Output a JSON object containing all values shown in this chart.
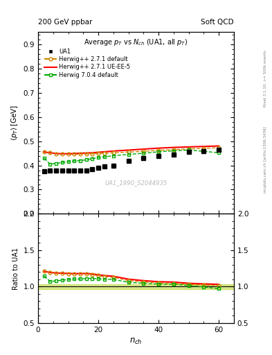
{
  "title_top_left": "200 GeV ppbar",
  "title_top_right": "Soft QCD",
  "main_title": "Average p_{T} vs N_{ch} (UA1, all p_{T})",
  "ylabel_main": "<p_T> [GeV]",
  "ylabel_ratio": "Ratio to UA1",
  "xlabel": "n_{ch}",
  "right_label_top": "Rivet 3.1.10, >= 500k events",
  "right_label_bottom": "mcplots.cern.ch [arXiv:1306.3436]",
  "watermark": "UA1_1990_S2044935",
  "ylim_main": [
    0.2,
    0.95
  ],
  "ylim_ratio": [
    0.5,
    2.0
  ],
  "xlim": [
    0,
    65
  ],
  "yticks_main": [
    0.2,
    0.3,
    0.4,
    0.5,
    0.6,
    0.7,
    0.8,
    0.9
  ],
  "yticks_ratio": [
    0.5,
    1.0,
    1.5,
    2.0
  ],
  "xticks": [
    0,
    20,
    40,
    60
  ],
  "ua1_x": [
    2,
    4,
    6,
    8,
    10,
    12,
    14,
    16,
    18,
    20,
    22,
    25,
    30,
    35,
    40,
    45,
    50,
    55,
    60
  ],
  "ua1_y": [
    0.375,
    0.378,
    0.378,
    0.378,
    0.378,
    0.378,
    0.38,
    0.38,
    0.385,
    0.39,
    0.395,
    0.4,
    0.42,
    0.43,
    0.44,
    0.445,
    0.455,
    0.46,
    0.465
  ],
  "hwpp271_default_x": [
    2,
    4,
    6,
    8,
    10,
    12,
    14,
    16,
    18,
    20,
    22,
    25,
    30,
    35,
    40,
    45,
    50,
    55,
    60
  ],
  "hwpp271_default_y": [
    0.455,
    0.452,
    0.448,
    0.447,
    0.446,
    0.446,
    0.447,
    0.447,
    0.448,
    0.449,
    0.45,
    0.452,
    0.455,
    0.458,
    0.462,
    0.465,
    0.468,
    0.47,
    0.473
  ],
  "hwpp271_ueee5_x": [
    2,
    4,
    6,
    8,
    10,
    12,
    14,
    16,
    18,
    20,
    22,
    25,
    30,
    35,
    40,
    45,
    50,
    55,
    60
  ],
  "hwpp271_ueee5_y": [
    0.455,
    0.452,
    0.449,
    0.448,
    0.448,
    0.449,
    0.45,
    0.451,
    0.452,
    0.454,
    0.456,
    0.459,
    0.463,
    0.467,
    0.471,
    0.474,
    0.476,
    0.478,
    0.48
  ],
  "hw704_default_x": [
    2,
    4,
    6,
    8,
    10,
    12,
    14,
    16,
    18,
    20,
    22,
    25,
    30,
    35,
    40,
    45,
    50,
    55,
    60
  ],
  "hw704_default_y": [
    0.43,
    0.405,
    0.408,
    0.412,
    0.415,
    0.418,
    0.42,
    0.423,
    0.428,
    0.432,
    0.435,
    0.44,
    0.445,
    0.45,
    0.456,
    0.46,
    0.463,
    0.458,
    0.452
  ],
  "color_ua1": "#000000",
  "color_hwpp271_default": "#cc8800",
  "color_hwpp271_ueee5": "#ff0000",
  "color_hw704_default": "#00aa00",
  "band_color": "#aacc00",
  "band_alpha": 0.45,
  "ratio_hwpp271_default_y": [
    1.21,
    1.196,
    1.185,
    1.183,
    1.18,
    1.178,
    1.176,
    1.175,
    1.165,
    1.152,
    1.14,
    1.13,
    1.083,
    1.065,
    1.05,
    1.045,
    1.03,
    1.022,
    1.017
  ],
  "ratio_hwpp271_ueee5_y": [
    1.21,
    1.196,
    1.188,
    1.185,
    1.182,
    1.18,
    1.18,
    1.182,
    1.175,
    1.163,
    1.153,
    1.143,
    1.103,
    1.083,
    1.068,
    1.063,
    1.046,
    1.038,
    1.032
  ],
  "ratio_hw704_default_y": [
    1.147,
    1.072,
    1.08,
    1.09,
    1.097,
    1.105,
    1.105,
    1.113,
    1.113,
    1.108,
    1.101,
    1.1,
    1.06,
    1.047,
    1.036,
    1.033,
    1.018,
    0.995,
    0.972
  ]
}
